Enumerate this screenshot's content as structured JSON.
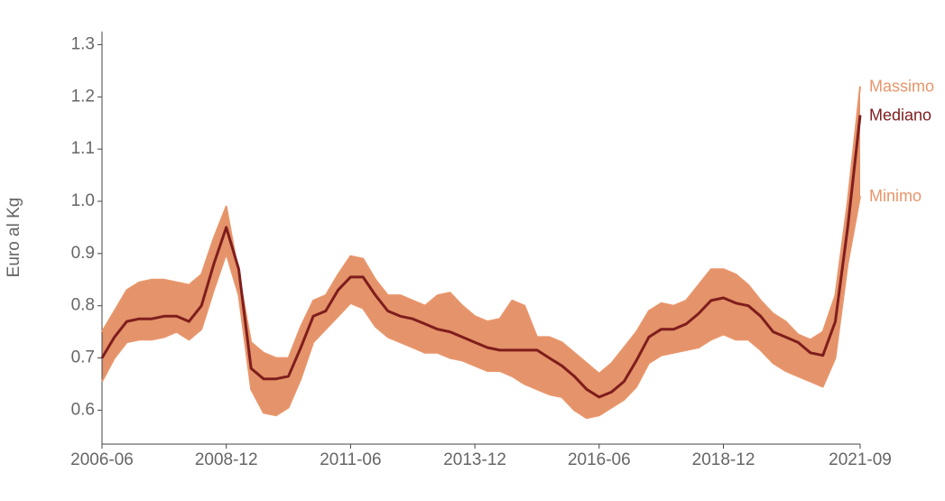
{
  "chart_data": {
    "type": "line",
    "y_label": "Euro al Kg",
    "x": [
      "2006-06",
      "2006-09",
      "2006-12",
      "2007-03",
      "2007-06",
      "2007-09",
      "2007-12",
      "2008-03",
      "2008-06",
      "2008-09",
      "2008-12",
      "2009-03",
      "2009-06",
      "2009-09",
      "2009-12",
      "2010-03",
      "2010-06",
      "2010-09",
      "2010-12",
      "2011-03",
      "2011-06",
      "2011-09",
      "2011-12",
      "2012-03",
      "2012-06",
      "2012-09",
      "2012-12",
      "2013-03",
      "2013-06",
      "2013-09",
      "2013-12",
      "2014-03",
      "2014-06",
      "2014-09",
      "2014-12",
      "2015-03",
      "2015-06",
      "2015-09",
      "2015-12",
      "2016-03",
      "2016-06",
      "2016-09",
      "2016-12",
      "2017-03",
      "2017-06",
      "2017-09",
      "2017-12",
      "2018-03",
      "2018-06",
      "2018-09",
      "2018-12",
      "2019-03",
      "2019-06",
      "2019-09",
      "2019-12",
      "2020-03",
      "2020-06",
      "2020-09",
      "2020-12",
      "2021-03",
      "2021-06",
      "2021-09"
    ],
    "series": [
      {
        "name": "Massimo",
        "color": "#e8956b",
        "values": [
          0.75,
          0.79,
          0.83,
          0.845,
          0.85,
          0.85,
          0.845,
          0.84,
          0.86,
          0.93,
          0.99,
          0.86,
          0.73,
          0.71,
          0.7,
          0.7,
          0.76,
          0.81,
          0.82,
          0.86,
          0.895,
          0.89,
          0.85,
          0.82,
          0.82,
          0.81,
          0.8,
          0.82,
          0.825,
          0.8,
          0.78,
          0.77,
          0.775,
          0.81,
          0.8,
          0.74,
          0.74,
          0.73,
          0.71,
          0.69,
          0.67,
          0.69,
          0.72,
          0.75,
          0.79,
          0.805,
          0.8,
          0.81,
          0.84,
          0.87,
          0.87,
          0.86,
          0.84,
          0.81,
          0.785,
          0.77,
          0.745,
          0.735,
          0.75,
          0.82,
          1.0,
          1.22
        ]
      },
      {
        "name": "Mediano",
        "color": "#7f1d1d",
        "values": [
          0.7,
          0.74,
          0.77,
          0.775,
          0.775,
          0.78,
          0.78,
          0.77,
          0.8,
          0.88,
          0.95,
          0.87,
          0.68,
          0.66,
          0.66,
          0.665,
          0.72,
          0.78,
          0.79,
          0.83,
          0.855,
          0.855,
          0.82,
          0.79,
          0.78,
          0.775,
          0.765,
          0.755,
          0.75,
          0.74,
          0.73,
          0.72,
          0.715,
          0.715,
          0.715,
          0.715,
          0.7,
          0.685,
          0.665,
          0.64,
          0.625,
          0.635,
          0.655,
          0.695,
          0.74,
          0.755,
          0.755,
          0.765,
          0.785,
          0.81,
          0.815,
          0.805,
          0.8,
          0.78,
          0.75,
          0.74,
          0.73,
          0.71,
          0.705,
          0.77,
          0.95,
          1.165
        ]
      },
      {
        "name": "Minimo",
        "color": "#e8956b",
        "values": [
          0.655,
          0.7,
          0.73,
          0.735,
          0.735,
          0.74,
          0.75,
          0.735,
          0.755,
          0.83,
          0.9,
          0.82,
          0.64,
          0.595,
          0.59,
          0.605,
          0.66,
          0.73,
          0.755,
          0.78,
          0.805,
          0.795,
          0.76,
          0.74,
          0.73,
          0.72,
          0.71,
          0.71,
          0.7,
          0.695,
          0.685,
          0.675,
          0.675,
          0.665,
          0.65,
          0.64,
          0.63,
          0.625,
          0.6,
          0.585,
          0.59,
          0.605,
          0.62,
          0.645,
          0.69,
          0.705,
          0.71,
          0.715,
          0.72,
          0.735,
          0.745,
          0.735,
          0.735,
          0.715,
          0.69,
          0.675,
          0.665,
          0.655,
          0.645,
          0.7,
          0.88,
          1.01
        ]
      }
    ],
    "band_color": "#e4936a",
    "xlim": [
      "2006-06",
      "2021-09"
    ],
    "xticks": [
      "2006-06",
      "2008-12",
      "2011-06",
      "2013-12",
      "2016-06",
      "2018-12",
      "2021-09"
    ],
    "ylim": [
      0.535,
      1.325
    ],
    "yticks": [
      0.6,
      0.7,
      0.8,
      0.9,
      {
        "value": 1,
        "label": "1.0"
      },
      1.1,
      1.2,
      1.3
    ]
  }
}
